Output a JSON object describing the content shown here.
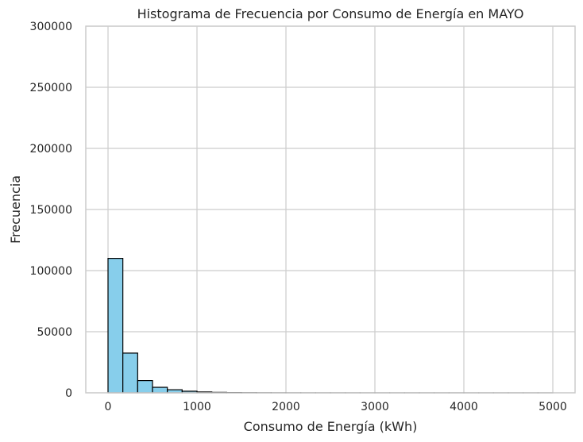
{
  "chart_data": {
    "type": "bar",
    "title": "Histograma de Frecuencia por Consumo de Energía en MAYO",
    "xlabel": "Consumo de Energía (kWh)",
    "ylabel": "Frecuencia",
    "xlim": [
      -250,
      5250
    ],
    "ylim": [
      0,
      300000
    ],
    "x_ticks": [
      0,
      1000,
      2000,
      3000,
      4000,
      5000
    ],
    "x_tick_labels": [
      "0",
      "1000",
      "2000",
      "3000",
      "4000",
      "5000"
    ],
    "y_ticks": [
      0,
      50000,
      100000,
      150000,
      200000,
      250000,
      300000
    ],
    "y_tick_labels": [
      "0",
      "50000",
      "100000",
      "150000",
      "200000",
      "250000",
      "300000"
    ],
    "grid": true,
    "bin_width": 166.67,
    "bins": [
      {
        "x0": 0,
        "x1": 166.67,
        "count": 110000
      },
      {
        "x0": 166.67,
        "x1": 333.33,
        "count": 32500
      },
      {
        "x0": 333.33,
        "x1": 500,
        "count": 10000
      },
      {
        "x0": 500,
        "x1": 666.67,
        "count": 4500
      },
      {
        "x0": 666.67,
        "x1": 833.33,
        "count": 2500
      },
      {
        "x0": 833.33,
        "x1": 1000,
        "count": 1300
      },
      {
        "x0": 1000,
        "x1": 1166.67,
        "count": 700
      },
      {
        "x0": 1166.67,
        "x1": 1333.33,
        "count": 400
      },
      {
        "x0": 1333.33,
        "x1": 1500,
        "count": 250
      },
      {
        "x0": 1500,
        "x1": 1666.67,
        "count": 150
      },
      {
        "x0": 1666.67,
        "x1": 1833.33,
        "count": 90
      },
      {
        "x0": 1833.33,
        "x1": 2000,
        "count": 60
      },
      {
        "x0": 2000,
        "x1": 2166.67,
        "count": 40
      },
      {
        "x0": 2166.67,
        "x1": 2333.33,
        "count": 30
      },
      {
        "x0": 2333.33,
        "x1": 2500,
        "count": 20
      },
      {
        "x0": 2500,
        "x1": 2666.67,
        "count": 15
      },
      {
        "x0": 2666.67,
        "x1": 2833.33,
        "count": 12
      },
      {
        "x0": 2833.33,
        "x1": 3000,
        "count": 10
      },
      {
        "x0": 3000,
        "x1": 3166.67,
        "count": 8
      },
      {
        "x0": 3166.67,
        "x1": 3333.33,
        "count": 6
      },
      {
        "x0": 3333.33,
        "x1": 3500,
        "count": 5
      },
      {
        "x0": 3500,
        "x1": 3666.67,
        "count": 4
      },
      {
        "x0": 3666.67,
        "x1": 3833.33,
        "count": 3
      },
      {
        "x0": 3833.33,
        "x1": 4000,
        "count": 3
      },
      {
        "x0": 4000,
        "x1": 4166.67,
        "count": 2
      },
      {
        "x0": 4166.67,
        "x1": 4333.33,
        "count": 2
      },
      {
        "x0": 4333.33,
        "x1": 4500,
        "count": 1
      },
      {
        "x0": 4500,
        "x1": 4666.67,
        "count": 1
      },
      {
        "x0": 4666.67,
        "x1": 4833.33,
        "count": 1
      },
      {
        "x0": 4833.33,
        "x1": 5000,
        "count": 1
      }
    ],
    "colors": {
      "bar_fill": "#87ceeb",
      "bar_edge": "#000000",
      "grid": "#cccccc",
      "frame": "#cccccc",
      "text": "#262626"
    }
  }
}
